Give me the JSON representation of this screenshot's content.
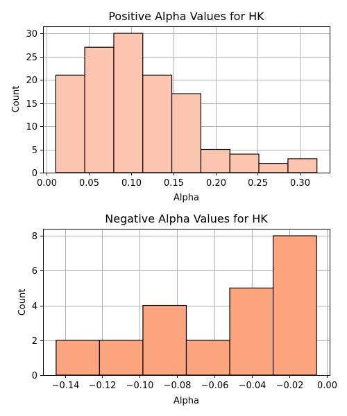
{
  "chart_data": [
    {
      "type": "bar",
      "title": "Positive Alpha Values for HK",
      "xlabel": "Alpha",
      "ylabel": "Count",
      "bin_edges": [
        0.011,
        0.0453,
        0.0797,
        0.114,
        0.1483,
        0.1827,
        0.217,
        0.2513,
        0.2857,
        0.32
      ],
      "values": [
        21,
        27,
        30,
        21,
        17,
        5,
        4,
        2,
        3
      ],
      "xlim": [
        -0.004,
        0.335
      ],
      "ylim": [
        0,
        31.5
      ],
      "xticks": [
        0.0,
        0.05,
        0.1,
        0.15,
        0.2,
        0.25,
        0.3
      ],
      "xtick_labels": [
        "0.00",
        "0.05",
        "0.10",
        "0.15",
        "0.20",
        "0.25",
        "0.30"
      ],
      "yticks": [
        0,
        5,
        10,
        15,
        20,
        25,
        30
      ],
      "ytick_labels": [
        "0",
        "5",
        "10",
        "15",
        "20",
        "25",
        "30"
      ],
      "bar_color": "#fcc5b0",
      "edge_color": "#000000",
      "grid": true
    },
    {
      "type": "bar",
      "title": "Negative Alpha Values for HK",
      "xlabel": "Alpha",
      "ylabel": "Count",
      "bin_edges": [
        -0.1447,
        -0.1215,
        -0.0983,
        -0.0751,
        -0.0519,
        -0.0287,
        -0.0055
      ],
      "values": [
        2,
        2,
        4,
        2,
        5,
        8
      ],
      "xlim": [
        -0.1517,
        0.0015
      ],
      "ylim": [
        0,
        8.4
      ],
      "xticks": [
        -0.14,
        -0.12,
        -0.1,
        -0.08,
        -0.06,
        -0.04,
        -0.02,
        0.0
      ],
      "xtick_labels": [
        "−0.14",
        "−0.12",
        "−0.10",
        "−0.08",
        "−0.06",
        "−0.04",
        "−0.02",
        "0.00"
      ],
      "yticks": [
        0,
        2,
        4,
        6,
        8
      ],
      "ytick_labels": [
        "0",
        "2",
        "4",
        "6",
        "8"
      ],
      "bar_color": "#fca57f",
      "edge_color": "#000000",
      "grid": true
    }
  ]
}
